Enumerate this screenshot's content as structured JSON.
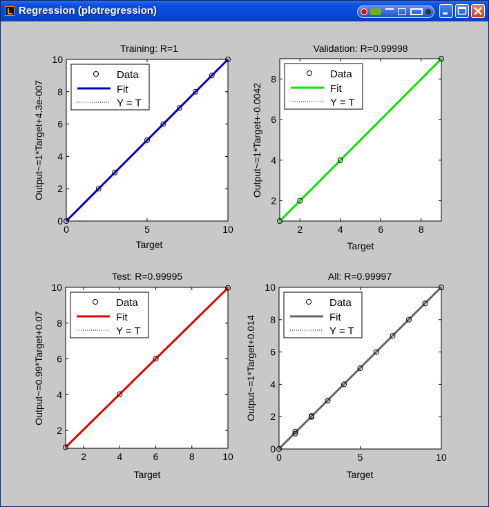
{
  "window": {
    "title": "Regression (plotregression)",
    "icons": [
      "matlab-icon",
      "record-icon",
      "nvidia-icon",
      "pin-icon",
      "dock-icon",
      "tile-icon",
      "menu-icon",
      "minimize-icon",
      "maximize-icon",
      "close-icon"
    ]
  },
  "legend_labels": [
    "Data",
    "Fit",
    "Y = T"
  ],
  "chart_data": [
    {
      "type": "scatter",
      "title": "Training: R=1",
      "xlabel": "Target",
      "ylabel": "Output~=1*Target+4.3e-007",
      "xlim": [
        0,
        10
      ],
      "ylim": [
        0,
        10
      ],
      "xticks": [
        0,
        5,
        10
      ],
      "yticks": [
        0,
        2,
        4,
        6,
        8,
        10
      ],
      "fit_color": "#0000c8",
      "fit": {
        "slope": 1,
        "intercept": 0
      },
      "x": [
        0,
        2,
        3,
        5,
        6,
        7,
        8,
        9,
        10
      ],
      "y": [
        0,
        2,
        3,
        5,
        6,
        7,
        8,
        9,
        10
      ],
      "legend": [
        "Data",
        "Fit",
        "Y = T"
      ]
    },
    {
      "type": "scatter",
      "title": "Validation: R=0.99998",
      "xlabel": "Target",
      "ylabel": "Output~=1*Target+-0.0042",
      "xlim": [
        1,
        9
      ],
      "ylim": [
        1,
        9
      ],
      "xticks": [
        2,
        4,
        6,
        8
      ],
      "yticks": [
        2,
        4,
        6,
        8
      ],
      "fit_color": "#00e600",
      "fit": {
        "slope": 1,
        "intercept": -0.0042
      },
      "x": [
        1,
        2,
        4,
        9
      ],
      "y": [
        1,
        2,
        4,
        9
      ],
      "legend": [
        "Data",
        "Fit",
        "Y = T"
      ]
    },
    {
      "type": "scatter",
      "title": "Test: R=0.99995",
      "xlabel": "Target",
      "ylabel": "Output~=0.99*Target+0.07",
      "xlim": [
        1,
        10
      ],
      "ylim": [
        1,
        10
      ],
      "xticks": [
        2,
        4,
        6,
        8,
        10
      ],
      "yticks": [
        2,
        4,
        6,
        8,
        10
      ],
      "fit_color": "#e00000",
      "fit": {
        "slope": 0.99,
        "intercept": 0.07
      },
      "x": [
        1,
        4,
        6,
        10
      ],
      "y": [
        1.06,
        4.03,
        6.01,
        9.97
      ],
      "legend": [
        "Data",
        "Fit",
        "Y = T"
      ]
    },
    {
      "type": "scatter",
      "title": "All: R=0.99997",
      "xlabel": "Target",
      "ylabel": "Output~=1*Target+0.014",
      "xlim": [
        0,
        10
      ],
      "ylim": [
        0,
        10
      ],
      "xticks": [
        0,
        5,
        10
      ],
      "yticks": [
        0,
        2,
        4,
        6,
        8,
        10
      ],
      "fit_color": "#646464",
      "fit": {
        "slope": 1,
        "intercept": 0.014
      },
      "x": [
        0,
        1,
        1,
        2,
        2,
        3,
        4,
        5,
        6,
        7,
        8,
        9,
        10
      ],
      "y": [
        0,
        0.95,
        1.08,
        1.98,
        2.04,
        3,
        4,
        5,
        6,
        7,
        8,
        9,
        10
      ],
      "legend": [
        "Data",
        "Fit",
        "Y = T"
      ]
    }
  ]
}
